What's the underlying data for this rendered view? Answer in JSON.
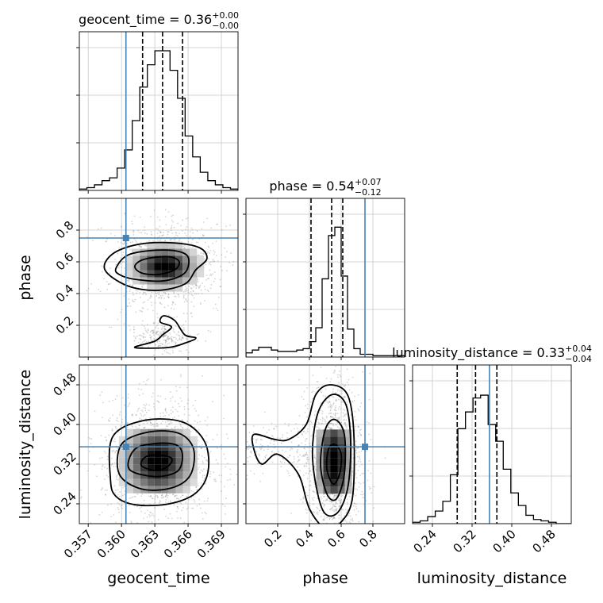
{
  "chart_data": {
    "type": "corner",
    "parameters": [
      {
        "name": "geocent_time",
        "title_prefix": "geocent_time = ",
        "median_text": "0.36",
        "plus_text": "+0.00",
        "minus_text": "−0.00",
        "axis_label": "geocent_time",
        "range": [
          0.3562,
          0.3705
        ],
        "ticks": [
          {
            "value": 0.357,
            "label": "0.357"
          },
          {
            "value": 0.36,
            "label": "0.360"
          },
          {
            "value": 0.363,
            "label": "0.363"
          },
          {
            "value": 0.366,
            "label": "0.366"
          },
          {
            "value": 0.369,
            "label": "0.369"
          }
        ],
        "truth": 0.3604,
        "quantiles": [
          0.3619,
          0.3637,
          0.3655
        ],
        "hist": [
          0.01,
          0.02,
          0.04,
          0.07,
          0.09,
          0.16,
          0.29,
          0.5,
          0.74,
          0.9,
          1.0,
          1.0,
          0.86,
          0.66,
          0.39,
          0.24,
          0.13,
          0.07,
          0.04,
          0.02,
          0.01
        ]
      },
      {
        "name": "phase",
        "title_prefix": "phase = ",
        "median_text": "0.54",
        "plus_text": "+0.07",
        "minus_text": "−0.12",
        "axis_label": "phase",
        "range": [
          0.0,
          1.0
        ],
        "ticks": [
          {
            "value": 0.2,
            "label": "0.2"
          },
          {
            "value": 0.4,
            "label": "0.4"
          },
          {
            "value": 0.6,
            "label": "0.6"
          },
          {
            "value": 0.8,
            "label": "0.8"
          }
        ],
        "truth": 0.75,
        "quantiles": [
          0.41,
          0.54,
          0.61
        ],
        "hist": [
          0.03,
          0.05,
          0.07,
          0.07,
          0.05,
          0.04,
          0.04,
          0.04,
          0.05,
          0.06,
          0.11,
          0.21,
          0.56,
          0.87,
          0.93,
          0.58,
          0.2,
          0.06,
          0.02,
          0.02,
          0.01,
          0.01,
          0.01,
          0.01,
          0.01
        ]
      },
      {
        "name": "luminosity_distance",
        "title_prefix": "luminosity_distance = ",
        "median_text": "0.33",
        "plus_text": "+0.04",
        "minus_text": "−0.04",
        "axis_label": "luminosity_distance",
        "range": [
          0.2,
          0.52
        ],
        "ticks": [
          {
            "value": 0.24,
            "label": "0.24"
          },
          {
            "value": 0.32,
            "label": "0.32"
          },
          {
            "value": 0.4,
            "label": "0.40"
          },
          {
            "value": 0.48,
            "label": "0.48"
          }
        ],
        "truth": 0.355,
        "quantiles": [
          0.29,
          0.327,
          0.37
        ],
        "hist": [
          0.01,
          0.02,
          0.05,
          0.09,
          0.16,
          0.35,
          0.68,
          0.8,
          0.9,
          0.92,
          0.71,
          0.59,
          0.39,
          0.22,
          0.13,
          0.06,
          0.03,
          0.02,
          0.01,
          0.0,
          0.0
        ]
      }
    ],
    "contours": {
      "1_0": [
        [
          [
            0.3612,
            0.57
          ],
          [
            0.3618,
            0.61
          ],
          [
            0.3632,
            0.63
          ],
          [
            0.3645,
            0.63
          ],
          [
            0.3652,
            0.6
          ],
          [
            0.3648,
            0.55
          ],
          [
            0.3633,
            0.52
          ],
          [
            0.3618,
            0.53
          ]
        ],
        [
          [
            0.3595,
            0.56
          ],
          [
            0.3605,
            0.64
          ],
          [
            0.3625,
            0.67
          ],
          [
            0.3648,
            0.67
          ],
          [
            0.366,
            0.63
          ],
          [
            0.3657,
            0.53
          ],
          [
            0.3638,
            0.48
          ],
          [
            0.3612,
            0.49
          ],
          [
            0.3598,
            0.52
          ]
        ],
        [
          [
            0.3585,
            0.55
          ],
          [
            0.3592,
            0.65
          ],
          [
            0.3615,
            0.71
          ],
          [
            0.3645,
            0.72
          ],
          [
            0.367,
            0.69
          ],
          [
            0.3677,
            0.62
          ],
          [
            0.3667,
            0.55
          ],
          [
            0.3657,
            0.46
          ],
          [
            0.3632,
            0.42
          ],
          [
            0.3605,
            0.45
          ]
        ],
        [
          [
            0.3612,
            0.06
          ],
          [
            0.363,
            0.1
          ],
          [
            0.3637,
            0.14
          ],
          [
            0.3645,
            0.19
          ],
          [
            0.3635,
            0.22
          ],
          [
            0.3638,
            0.26
          ],
          [
            0.3648,
            0.23
          ],
          [
            0.3657,
            0.14
          ],
          [
            0.3667,
            0.12
          ],
          [
            0.3658,
            0.09
          ],
          [
            0.3642,
            0.06
          ]
        ]
      ],
      "2_0": [
        [
          [
            0.3618,
            0.317
          ],
          [
            0.3622,
            0.335
          ],
          [
            0.3635,
            0.338
          ],
          [
            0.3645,
            0.332
          ],
          [
            0.3643,
            0.318
          ],
          [
            0.3632,
            0.307
          ]
        ],
        [
          [
            0.3607,
            0.31
          ],
          [
            0.3612,
            0.35
          ],
          [
            0.3632,
            0.362
          ],
          [
            0.365,
            0.358
          ],
          [
            0.3655,
            0.335
          ],
          [
            0.365,
            0.305
          ],
          [
            0.363,
            0.295
          ]
        ],
        [
          [
            0.3598,
            0.3
          ],
          [
            0.36,
            0.36
          ],
          [
            0.3625,
            0.385
          ],
          [
            0.3652,
            0.382
          ],
          [
            0.3665,
            0.35
          ],
          [
            0.3662,
            0.298
          ],
          [
            0.3645,
            0.272
          ],
          [
            0.3618,
            0.27
          ]
        ],
        [
          [
            0.359,
            0.29
          ],
          [
            0.3592,
            0.375
          ],
          [
            0.362,
            0.408
          ],
          [
            0.3655,
            0.405
          ],
          [
            0.3675,
            0.365
          ],
          [
            0.3678,
            0.305
          ],
          [
            0.3667,
            0.262
          ],
          [
            0.3643,
            0.24
          ],
          [
            0.3613,
            0.238
          ],
          [
            0.3595,
            0.255
          ]
        ]
      ],
      "2_1": [
        [
          [
            0.51,
            0.31
          ],
          [
            0.52,
            0.35
          ],
          [
            0.56,
            0.36
          ],
          [
            0.6,
            0.34
          ],
          [
            0.59,
            0.3
          ],
          [
            0.55,
            0.28
          ]
        ],
        [
          [
            0.47,
            0.32
          ],
          [
            0.5,
            0.39
          ],
          [
            0.56,
            0.41
          ],
          [
            0.62,
            0.38
          ],
          [
            0.62,
            0.3
          ],
          [
            0.57,
            0.25
          ],
          [
            0.51,
            0.26
          ]
        ],
        [
          [
            0.42,
            0.33
          ],
          [
            0.45,
            0.42
          ],
          [
            0.54,
            0.46
          ],
          [
            0.63,
            0.44
          ],
          [
            0.66,
            0.36
          ],
          [
            0.64,
            0.27
          ],
          [
            0.57,
            0.22
          ],
          [
            0.48,
            0.23
          ]
        ],
        [
          [
            0.05,
            0.35
          ],
          [
            0.05,
            0.38
          ],
          [
            0.18,
            0.37
          ],
          [
            0.27,
            0.37
          ],
          [
            0.38,
            0.4
          ],
          [
            0.44,
            0.46
          ],
          [
            0.53,
            0.48
          ],
          [
            0.64,
            0.46
          ],
          [
            0.68,
            0.38
          ],
          [
            0.67,
            0.25
          ],
          [
            0.59,
            0.2
          ],
          [
            0.5,
            0.19
          ],
          [
            0.4,
            0.23
          ],
          [
            0.33,
            0.3
          ],
          [
            0.2,
            0.34
          ],
          [
            0.1,
            0.32
          ]
        ]
      ]
    },
    "hexbins": {
      "1_0": {
        "center": [
          0.3639,
          0.57
        ],
        "sigma": [
          0.0013,
          0.06
        ],
        "peak": 1.0
      },
      "2_0": {
        "center": [
          0.3633,
          0.326
        ],
        "sigma": [
          0.0014,
          0.035
        ],
        "peak": 1.0
      },
      "2_1": {
        "center": [
          0.555,
          0.325
        ],
        "sigma": [
          0.05,
          0.05
        ],
        "peak": 1.0
      }
    },
    "colors": {
      "truth": "#4682b4",
      "hist": "#000000",
      "contour": "#000000",
      "grid": "#c8c8c8",
      "scatter": "#888888"
    },
    "grid": true,
    "truth_marker": "square"
  }
}
